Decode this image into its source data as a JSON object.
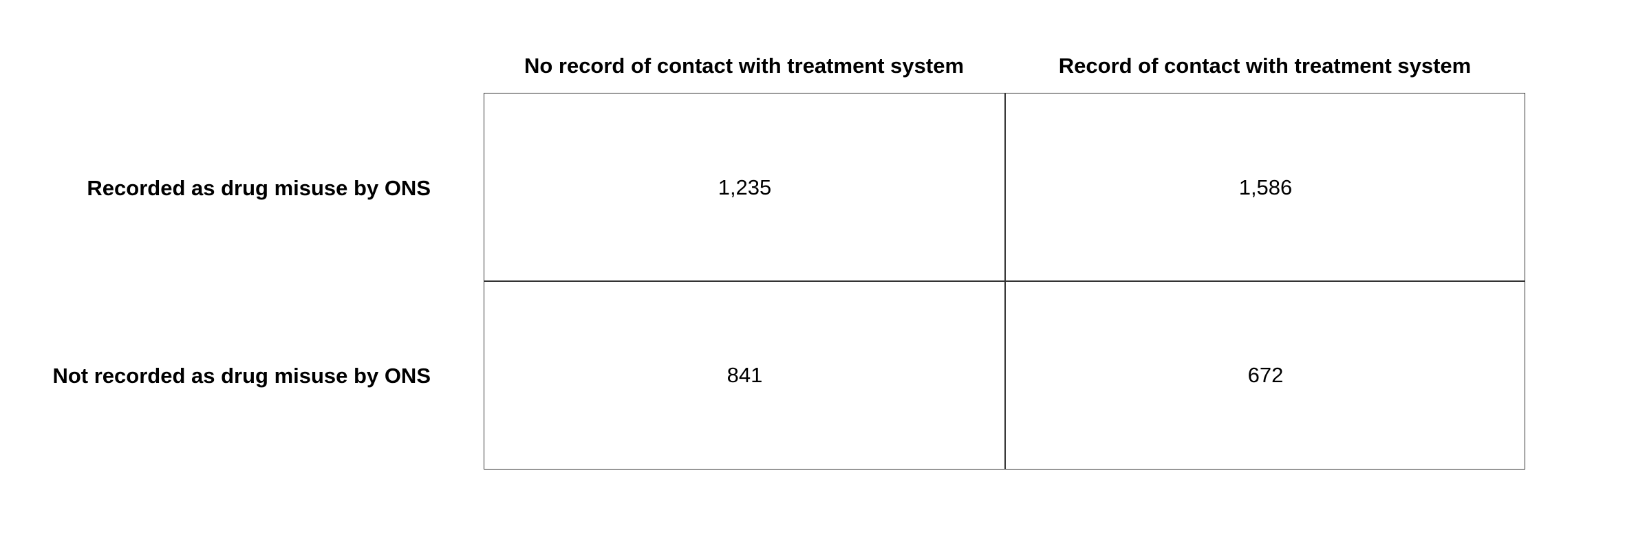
{
  "chart_data": {
    "type": "table",
    "columns": [
      "No record of contact with treatment system",
      "Record of contact with treatment system"
    ],
    "rows": [
      {
        "label": "Recorded as drug misuse by ONS",
        "values": [
          "1,235",
          "1,586"
        ]
      },
      {
        "label": "Not recorded as drug misuse by ONS",
        "values": [
          "841",
          "672"
        ]
      }
    ],
    "grid": true
  }
}
